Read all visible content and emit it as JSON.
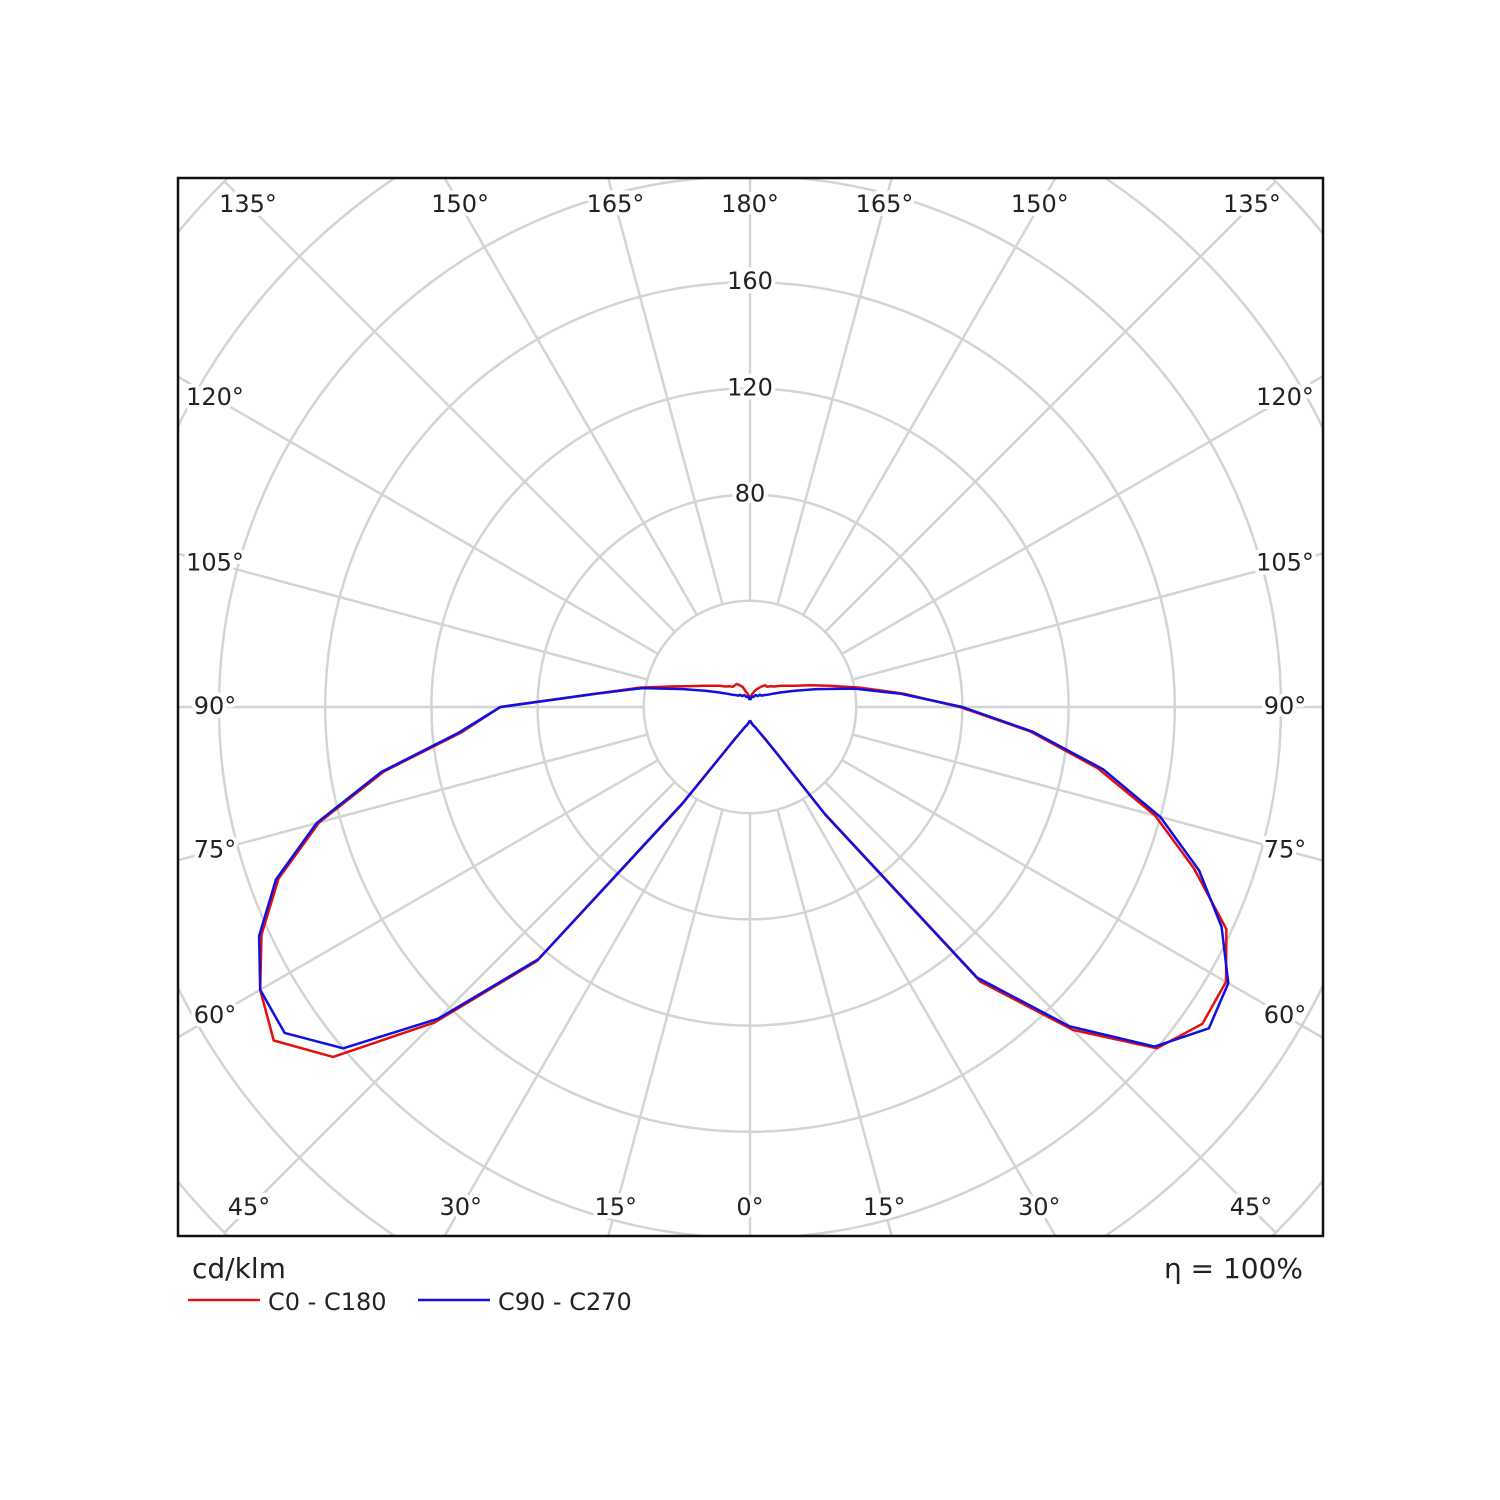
{
  "chart_data": {
    "type": "polar",
    "r_label": "cd/klm",
    "efficiency_label": "η = 100%",
    "rlim": [
      0,
      200
    ],
    "rgrid": [
      40,
      80,
      120,
      160,
      200,
      240,
      280
    ],
    "rticks": [
      80,
      120,
      160
    ],
    "gamma": [
      0,
      5,
      10,
      15,
      20,
      25,
      30,
      35,
      40,
      45,
      50,
      55,
      60,
      65,
      70,
      75,
      80,
      85,
      90,
      95,
      100,
      105,
      110,
      115,
      120,
      125,
      130,
      135,
      140,
      145,
      150,
      155,
      160,
      165,
      170,
      175,
      180
    ],
    "gamma_ticks": [
      {
        "value": 0,
        "label": "0°"
      },
      {
        "value": 15,
        "label": "15°"
      },
      {
        "value": 30,
        "label": "30°"
      },
      {
        "value": 45,
        "label": "45°"
      },
      {
        "value": 60,
        "label": "60°"
      },
      {
        "value": 75,
        "label": "75°"
      },
      {
        "value": 90,
        "label": "90°"
      },
      {
        "value": 105,
        "label": "105°"
      },
      {
        "value": 120,
        "label": "120°"
      },
      {
        "value": 135,
        "label": "135°"
      },
      {
        "value": 150,
        "label": "150°"
      },
      {
        "value": 165,
        "label": "165°"
      },
      {
        "value": 180,
        "label": "180°"
      }
    ],
    "series": [
      {
        "name": "C0 - C180",
        "color": "#e01010",
        "left": [
          5,
          6,
          7,
          8,
          10,
          13,
          20,
          45,
          125,
          168,
          205,
          219,
          213,
          203,
          189,
          168,
          140,
          109,
          94,
          58,
          42,
          30,
          23,
          19,
          16,
          14,
          12,
          11,
          10,
          10,
          10,
          9,
          8,
          6,
          5,
          4,
          3
        ],
        "right": [
          5,
          6,
          7,
          8,
          10,
          13,
          20,
          50,
          135,
          172,
          200,
          208,
          207,
          198,
          178,
          158,
          133,
          106,
          79,
          58,
          42,
          31,
          24,
          19,
          16,
          14,
          12,
          11,
          10,
          10,
          9,
          8,
          7,
          6,
          5,
          4,
          3
        ]
      },
      {
        "name": "C90 - C270",
        "color": "#1010e0",
        "left": [
          5,
          6,
          7,
          8,
          10,
          13,
          20,
          44,
          124,
          166,
          200,
          214,
          213,
          204,
          190,
          169,
          141,
          110,
          94,
          58,
          41,
          26,
          18,
          13,
          10,
          8,
          7,
          6,
          6,
          5,
          5,
          5,
          4,
          4,
          4,
          3,
          3
        ],
        "right": [
          5,
          6,
          7,
          8,
          10,
          13,
          20,
          49,
          133,
          170,
          199,
          211,
          208,
          196,
          180,
          160,
          135,
          107,
          80,
          57,
          40,
          26,
          18,
          13,
          10,
          8,
          7,
          6,
          6,
          5,
          5,
          5,
          4,
          4,
          4,
          3,
          3
        ]
      }
    ]
  }
}
